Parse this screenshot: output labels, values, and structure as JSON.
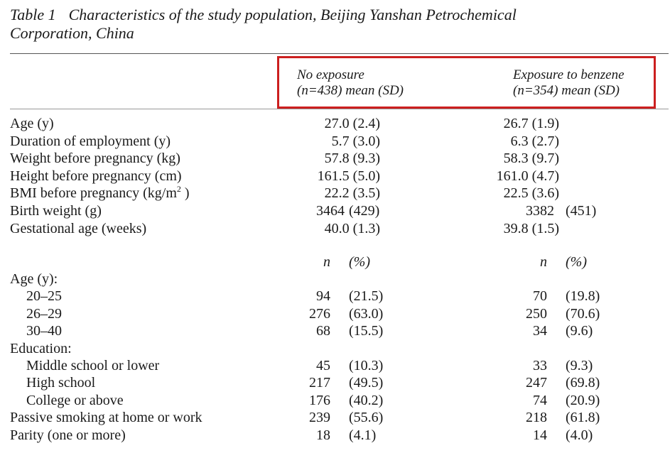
{
  "caption": {
    "number": "Table 1",
    "text": "Characteristics of the study population, Beijing Yanshan Petrochemical",
    "text2": "Corporation, China"
  },
  "columns": [
    {
      "line1": "No exposure",
      "line2": "(n=438) mean (SD)"
    },
    {
      "line1": "Exposure to benzene",
      "line2": "(n=354) mean (SD)"
    }
  ],
  "highlight_color": "#cc1f1f",
  "continuous_rows": [
    {
      "label": "Age (y)",
      "v1": "27.0 (2.4)",
      "v2": "26.7 (1.9)"
    },
    {
      "label": "Duration of employment (y)",
      "v1": "5.7 (3.0)",
      "v2": "6.3 (2.7)"
    },
    {
      "label": "Weight before pregnancy (kg)",
      "v1": "57.8 (9.3)",
      "v2": "58.3 (9.7)"
    },
    {
      "label": "Height before pregnancy (cm)",
      "v1": "161.5 (5.0)",
      "v2": "161.0 (4.7)"
    },
    {
      "label": "BMI before pregnancy (kg/m",
      "label_sup": "2",
      "label_after": " )",
      "v1": "22.2 (3.5)",
      "v2": "22.5 (3.6)"
    },
    {
      "label": "Birth weight (g)",
      "v1": "3464",
      "s1": "(429)",
      "v2": "3382",
      "s2": "(451)"
    },
    {
      "label": "Gestational age (weeks)",
      "v1": "40.0 (1.3)",
      "v2": "39.8 (1.5)"
    }
  ],
  "subheader": {
    "n": "n",
    "pct": "(%)"
  },
  "categorical_rows": [
    {
      "label": "Age (y):",
      "indent": false,
      "n1": "",
      "p1": "",
      "n2": "",
      "p2": ""
    },
    {
      "label": "20–25",
      "indent": true,
      "n1": "94",
      "p1": "(21.5)",
      "n2": "70",
      "p2": "(19.8)"
    },
    {
      "label": "26–29",
      "indent": true,
      "n1": "276",
      "p1": "(63.0)",
      "n2": "250",
      "p2": "(70.6)"
    },
    {
      "label": "30–40",
      "indent": true,
      "n1": "68",
      "p1": "(15.5)",
      "n2": "34",
      "p2": "(9.6)"
    },
    {
      "label": "Education:",
      "indent": false,
      "n1": "",
      "p1": "",
      "n2": "",
      "p2": ""
    },
    {
      "label": "Middle school or lower",
      "indent": true,
      "n1": "45",
      "p1": "(10.3)",
      "n2": "33",
      "p2": "(9.3)"
    },
    {
      "label": "High school",
      "indent": true,
      "n1": "217",
      "p1": "(49.5)",
      "n2": "247",
      "p2": "(69.8)"
    },
    {
      "label": "College or above",
      "indent": true,
      "n1": "176",
      "p1": "(40.2)",
      "n2": "74",
      "p2": "(20.9)"
    },
    {
      "label": "Passive smoking at home or work",
      "indent": false,
      "n1": "239",
      "p1": "(55.6)",
      "n2": "218",
      "p2": "(61.8)"
    },
    {
      "label": "Parity (one or more)",
      "indent": false,
      "n1": "18",
      "p1": "(4.1)",
      "n2": "14",
      "p2": "(4.0)"
    }
  ]
}
